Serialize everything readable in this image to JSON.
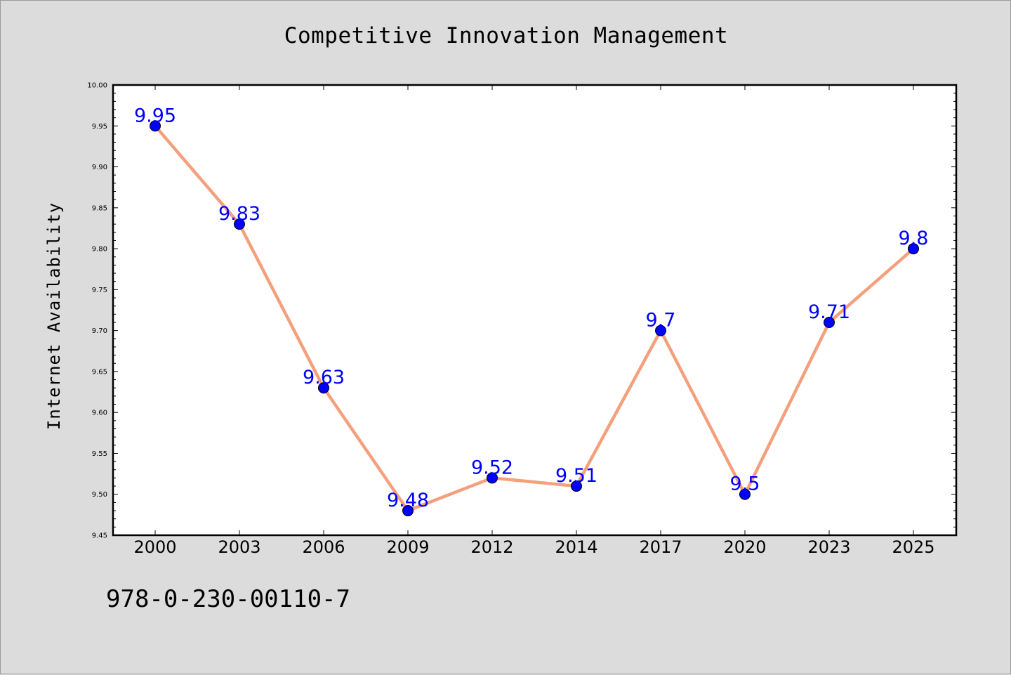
{
  "chart_data": {
    "type": "line",
    "title": "Competitive Innovation Management",
    "xlabel": "",
    "ylabel": "Internet Availability",
    "categories": [
      "2000",
      "2003",
      "2006",
      "2009",
      "2012",
      "2014",
      "2017",
      "2020",
      "2023",
      "2025"
    ],
    "series": [
      {
        "values": [
          9.95,
          9.83,
          9.63,
          9.48,
          9.52,
          9.51,
          9.7,
          9.5,
          9.71,
          9.8
        ],
        "data_labels": [
          "9.95",
          "9.83",
          "9.63",
          "9.48",
          "9.52",
          "9.51",
          "9.7",
          "9.5",
          "9.71",
          "9.8"
        ],
        "line_color": "#f4a07c",
        "marker_color": "#0000ff"
      }
    ],
    "ylim": [
      9.45,
      10.0
    ],
    "yticks": [
      "9.45",
      "9.50",
      "9.55",
      "9.60",
      "9.65",
      "9.70",
      "9.75",
      "9.80",
      "9.85",
      "9.90",
      "9.95",
      "10.00"
    ],
    "grid": false,
    "legend": "none",
    "label_color": "#0000ff"
  },
  "footer": {
    "isbn": "978-0-230-00110-7"
  }
}
